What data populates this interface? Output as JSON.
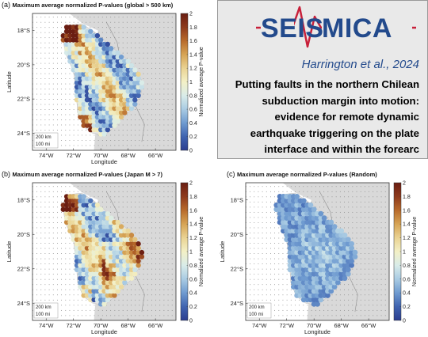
{
  "panels": [
    {
      "id": "a",
      "label": "(a)",
      "title": "Maximum average normalized P-values (global > 500 km)",
      "variant": "global"
    },
    {
      "id": "b",
      "label": "(b)",
      "title": "Maximum average normalized P-values (Japan M > 7)",
      "variant": "japan"
    },
    {
      "id": "c",
      "label": "(c)",
      "title": "Maximum average normalized P-values (Random)",
      "variant": "random"
    }
  ],
  "map": {
    "xlabel": "Longitude",
    "ylabel": "Latitude",
    "xticks": [
      "74°W",
      "72°W",
      "70°W",
      "68°W",
      "66°W"
    ],
    "yticks": [
      "18°S",
      "20°S",
      "22°S",
      "24°S"
    ],
    "scale_km": "200 km",
    "scale_mi": "100 mi"
  },
  "colorbar": {
    "label": "Normalized average P-value",
    "ticks": [
      "0",
      "0.2",
      "0.4",
      "0.6",
      "0.8",
      "1",
      "1.2",
      "1.4",
      "1.6",
      "1.8",
      "2"
    ],
    "colors": [
      "#2b3d8f",
      "#3f63b0",
      "#6f9bd0",
      "#a9cbe3",
      "#d9ece9",
      "#f3f0c6",
      "#ead393",
      "#d6a455",
      "#b86b2c",
      "#8e3a1c",
      "#6a1d12"
    ]
  },
  "chart_data": [
    {
      "type": "heatmap",
      "title": "Maximum average normalized P-values (global > 500 km)",
      "xlabel": "Longitude",
      "ylabel": "Latitude",
      "xlim": [
        -75,
        -64.5
      ],
      "ylim": [
        -25,
        -17
      ],
      "color_range": [
        0,
        2
      ],
      "colorbar_label": "Normalized average P-value"
    },
    {
      "type": "heatmap",
      "title": "Maximum average normalized P-values (Japan M > 7)",
      "xlabel": "Longitude",
      "ylabel": "Latitude",
      "xlim": [
        -75,
        -64.5
      ],
      "ylim": [
        -25,
        -17
      ],
      "color_range": [
        0,
        2
      ],
      "colorbar_label": "Normalized average P-value"
    },
    {
      "type": "heatmap",
      "title": "Maximum average normalized P-values (Random)",
      "xlabel": "Longitude",
      "ylabel": "Latitude",
      "xlim": [
        -75,
        -64.5
      ],
      "ylim": [
        -25,
        -17
      ],
      "color_range": [
        0,
        2
      ],
      "colorbar_label": "Normalized average P-value"
    }
  ],
  "header": {
    "logo": "SEISMICA",
    "citation": "Harrington et al., 2024",
    "title": "Putting faults in the northern Chilean subduction margin into motion: evidence for remote dynamic earthquake triggering on the plate interface and within the forearc"
  }
}
